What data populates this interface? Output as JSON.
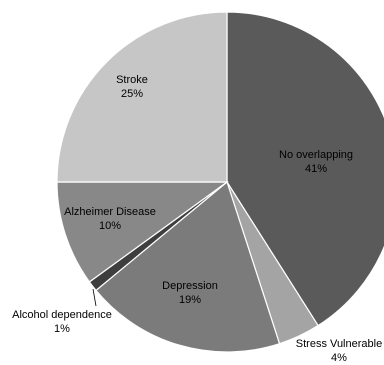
{
  "chart_data": {
    "type": "pie",
    "title": "",
    "slices": [
      {
        "label": "No overlapping",
        "value": 41,
        "value_label": "41%",
        "color": "#5a5a5a"
      },
      {
        "label": "Stress Vulnerable",
        "value": 4,
        "value_label": "4%",
        "color": "#a4a4a4"
      },
      {
        "label": "Depression",
        "value": 19,
        "value_label": "19%",
        "color": "#7b7b7b"
      },
      {
        "label": "Alcohol dependence",
        "value": 1,
        "value_label": "1%",
        "color": "#3e3e3e"
      },
      {
        "label": "Alzheimer Disease",
        "value": 10,
        "value_label": "10%",
        "color": "#888888"
      },
      {
        "label": "Stroke",
        "value": 25,
        "value_label": "25%",
        "color": "#c6c6c6"
      }
    ],
    "start_angle_deg": 0,
    "direction": "clockwise",
    "legend": "none"
  }
}
